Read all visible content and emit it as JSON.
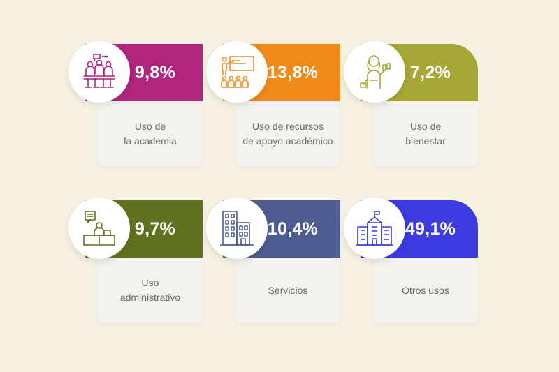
{
  "cards": [
    {
      "percent": "9,8%",
      "line1": "Uso de",
      "line2": "la academia",
      "color": "#b1257e",
      "icon": "meeting-group-icon"
    },
    {
      "percent": "13,8%",
      "line1": "Uso de recursos",
      "line2": "de apoyo académico",
      "color": "#f08a1a",
      "icon": "presentation-audience-icon"
    },
    {
      "percent": "7,2%",
      "line1": "Uso de",
      "line2": "bienestar",
      "color": "#a7a738",
      "icon": "fitness-person-icon"
    },
    {
      "percent": "9,7%",
      "line1": "Uso",
      "line2": "administrativo",
      "color": "#60721d",
      "icon": "desk-worker-icon"
    },
    {
      "percent": "10,4%",
      "line1": "Servicios",
      "line2": "",
      "color": "#4f5b93",
      "icon": "office-building-icon"
    },
    {
      "percent": "49,1%",
      "line1": "Otros usos",
      "line2": "",
      "color": "#3c3ce0",
      "icon": "campus-building-icon"
    }
  ]
}
